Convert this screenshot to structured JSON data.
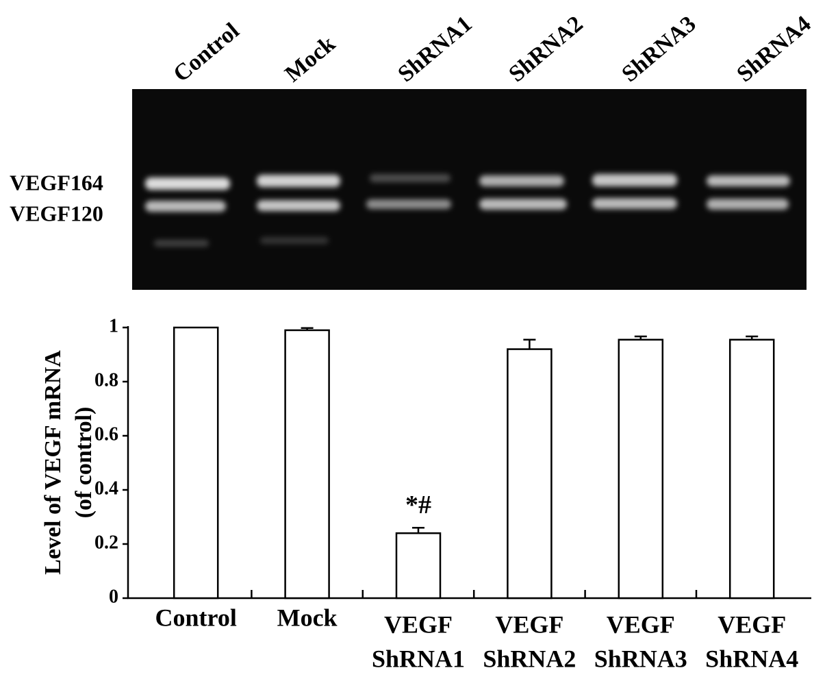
{
  "gel": {
    "lanes": [
      "Control",
      "Mock",
      "ShRNA1",
      "ShRNA2",
      "ShRNA3",
      "ShRNA4"
    ],
    "bands": [
      "VEGF164",
      "VEGF120"
    ]
  },
  "chart_data": {
    "type": "bar",
    "y_label": [
      "Level of VEGF mRNA",
      "(of control)"
    ],
    "categories": [
      [
        "Control"
      ],
      [
        "Mock"
      ],
      [
        "VEGF",
        "ShRNA1"
      ],
      [
        "VEGF",
        "ShRNA2"
      ],
      [
        "VEGF",
        "ShRNA3"
      ],
      [
        "VEGF",
        "ShRNA4"
      ]
    ],
    "values": [
      1,
      0.99,
      0.24,
      0.92,
      0.955,
      0.955
    ],
    "errors": [
      0,
      0.008,
      0.02,
      0.035,
      0.012,
      0.012
    ],
    "color": "#ffffff",
    "annotation": "*#",
    "annotation_category": 2,
    "ylim": [
      0,
      1
    ],
    "yticks": [
      0,
      0.2,
      0.4,
      0.6,
      0.8,
      1
    ]
  }
}
